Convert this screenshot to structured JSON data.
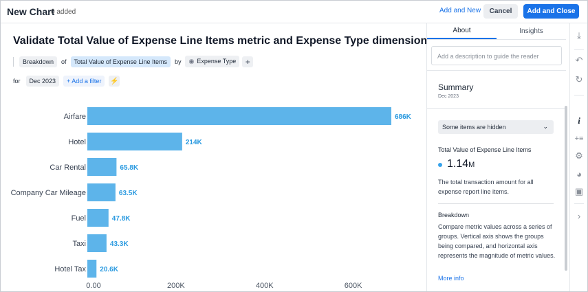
{
  "header": {
    "title": "New Chart",
    "added": "0 added",
    "add_and_new": "Add and New",
    "cancel": "Cancel",
    "add_and_close": "Add and Close"
  },
  "main": {
    "title": "Validate Total Value of Expense Line Items metric and Expense Type dimension",
    "query": {
      "breakdown": "Breakdown",
      "of": "of",
      "metric": "Total Value of Expense Line Items",
      "by": "by",
      "dimension": "Expense Type",
      "plus": "+"
    },
    "filter": {
      "for": "for",
      "period": "Dec 2023",
      "add_filter": "+ Add a filter"
    }
  },
  "chart_data": {
    "type": "bar",
    "orientation": "horizontal",
    "categories": [
      "Airfare",
      "Hotel",
      "Car Rental",
      "Company Car Mileage",
      "Fuel",
      "Taxi",
      "Hotel Tax"
    ],
    "values": [
      686000,
      214000,
      65800,
      63500,
      47800,
      43300,
      20600
    ],
    "value_labels": [
      "686K",
      "214K",
      "65.8K",
      "63.5K",
      "47.8K",
      "43.3K",
      "20.6K"
    ],
    "x_ticks": [
      0,
      200000,
      400000,
      600000
    ],
    "x_tick_labels": [
      "0.00",
      "200K",
      "400K",
      "600K"
    ],
    "xlim": [
      0,
      700000
    ],
    "bar_color": "#5db4ea",
    "label_color": "#2a9ae0",
    "grid": false
  },
  "panel": {
    "tabs": [
      "About",
      "Insights"
    ],
    "description_placeholder": "Add a description to guide the reader",
    "summary_title": "Summary",
    "summary_date": "Dec 2023",
    "hidden_notice": "Some items are hidden",
    "metric_name": "Total Value of Expense Line Items",
    "metric_value": "1.14",
    "metric_unit": "M",
    "metric_dot_color": "#36a2eb",
    "metric_description": "The total transaction amount for all expense report line items.",
    "breakdown_title": "Breakdown",
    "breakdown_description": "Compare metric values across a series of groups. Vertical axis shows the groups being compared, and horizontal axis represents the magnitude of metric values.",
    "more_info": "More info"
  },
  "toolbar": {
    "icons": [
      "download-icon",
      "undo-icon",
      "redo-icon",
      "info-icon",
      "add-metric-icon",
      "settings-icon",
      "palette-icon",
      "template-icon",
      "expand-icon"
    ]
  }
}
